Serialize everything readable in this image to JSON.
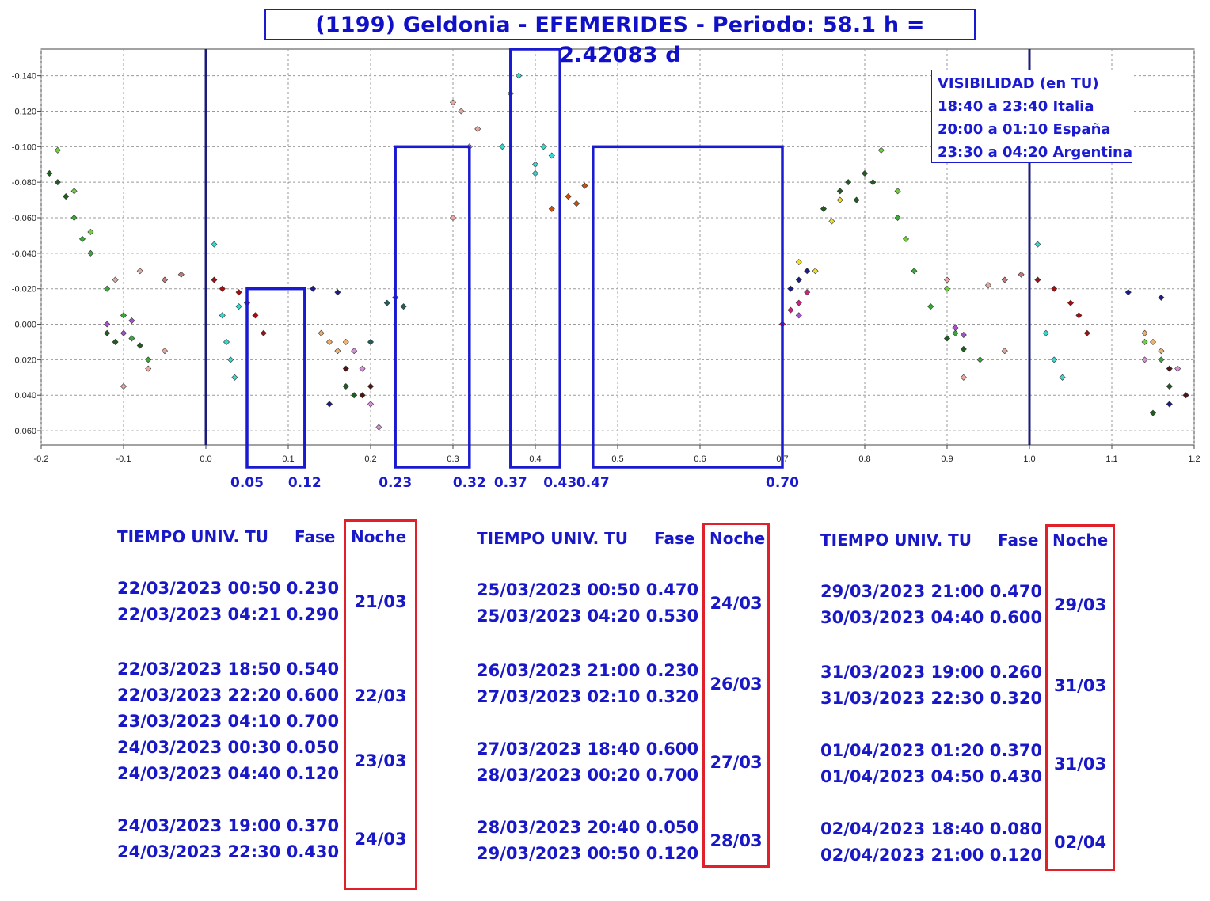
{
  "title": "(1199) Geldonia - EFEMERIDES - Periodo: 58.1 h = 2.42083 d",
  "visibility": {
    "title": "VISIBILIDAD (en TU)",
    "lines": [
      "18:40 a 23:40 Italia",
      "20:00 a 01:10 España",
      "23:30 a 04:20 Argentina"
    ]
  },
  "colors": {
    "accent": "#1a1ad0",
    "night_box": "#e0212a",
    "text": "#1818c8"
  },
  "chart_data": {
    "type": "scatter",
    "title": "(1199) Geldonia - EFEMERIDES - Periodo: 58.1 h = 2.42083 d",
    "xlabel": "",
    "ylabel": "",
    "xlim": [
      -0.2,
      1.2
    ],
    "ylim": [
      -0.155,
      0.068
    ],
    "y_inverted": true,
    "grid": true,
    "x_ticks": [
      "-0.2",
      "-0.1",
      "0.0",
      "0.1",
      "0.2",
      "0.3",
      "0.4",
      "0.5",
      "0.6",
      "0.7",
      "0.8",
      "0.9",
      "1.0",
      "1.1",
      "1.2"
    ],
    "y_ticks": [
      "-0.140",
      "-0.120",
      "-0.100",
      "-0.080",
      "-0.060",
      "-0.040",
      "-0.020",
      "0.000",
      "0.020",
      "0.040",
      "0.060"
    ],
    "vertical_lines": [
      0.0,
      1.0
    ],
    "phase_windows": [
      {
        "from": 0.05,
        "to": 0.12,
        "y_top": -0.02
      },
      {
        "from": 0.23,
        "to": 0.32,
        "y_top": -0.1
      },
      {
        "from": 0.37,
        "to": 0.43,
        "y_top": -0.155
      },
      {
        "from": 0.47,
        "to": 0.7,
        "y_top": -0.1
      }
    ],
    "phase_marks": [
      "0.05",
      "0.12",
      "0.23",
      "0.32",
      "0.37",
      "0.43",
      "0.47",
      "0.70"
    ],
    "series": [
      {
        "color": "#1f5e1f",
        "points": [
          [
            -0.19,
            -0.085
          ],
          [
            -0.18,
            -0.08
          ],
          [
            -0.17,
            -0.072
          ],
          [
            -0.12,
            0.005
          ],
          [
            -0.11,
            0.01
          ],
          [
            -0.08,
            0.012
          ],
          [
            0.17,
            0.035
          ],
          [
            0.18,
            0.04
          ],
          [
            0.75,
            -0.065
          ],
          [
            0.77,
            -0.075
          ],
          [
            0.78,
            -0.08
          ],
          [
            0.8,
            -0.085
          ],
          [
            0.81,
            -0.08
          ],
          [
            0.79,
            -0.07
          ],
          [
            0.9,
            0.008
          ],
          [
            0.92,
            0.014
          ],
          [
            1.17,
            0.035
          ],
          [
            1.15,
            0.05
          ]
        ]
      },
      {
        "color": "#3aa83a",
        "points": [
          [
            -0.16,
            -0.06
          ],
          [
            -0.15,
            -0.048
          ],
          [
            -0.14,
            -0.04
          ],
          [
            -0.12,
            -0.02
          ],
          [
            -0.1,
            -0.005
          ],
          [
            -0.09,
            0.008
          ],
          [
            -0.07,
            0.02
          ],
          [
            0.84,
            -0.06
          ],
          [
            0.86,
            -0.03
          ],
          [
            0.88,
            -0.01
          ],
          [
            0.91,
            0.005
          ],
          [
            0.94,
            0.02
          ],
          [
            1.16,
            0.02
          ]
        ]
      },
      {
        "color": "#6fd03f",
        "points": [
          [
            -0.18,
            -0.098
          ],
          [
            -0.16,
            -0.075
          ],
          [
            -0.14,
            -0.052
          ],
          [
            0.82,
            -0.098
          ],
          [
            0.84,
            -0.075
          ],
          [
            0.85,
            -0.048
          ],
          [
            0.9,
            -0.02
          ],
          [
            1.14,
            0.01
          ]
        ]
      },
      {
        "color": "#e8a8a0",
        "points": [
          [
            -0.11,
            -0.025
          ],
          [
            -0.1,
            0.035
          ],
          [
            -0.08,
            -0.03
          ],
          [
            -0.07,
            0.025
          ],
          [
            -0.05,
            0.015
          ],
          [
            0.3,
            -0.125
          ],
          [
            0.31,
            -0.12
          ],
          [
            0.3,
            -0.06
          ],
          [
            0.32,
            -0.1
          ],
          [
            0.33,
            -0.11
          ],
          [
            0.9,
            -0.025
          ],
          [
            0.92,
            0.03
          ],
          [
            0.95,
            -0.022
          ],
          [
            0.97,
            0.015
          ]
        ]
      },
      {
        "color": "#a01010",
        "points": [
          [
            0.01,
            -0.025
          ],
          [
            0.02,
            -0.02
          ],
          [
            0.04,
            -0.018
          ],
          [
            0.05,
            -0.012
          ],
          [
            0.06,
            -0.005
          ],
          [
            0.07,
            0.005
          ],
          [
            1.01,
            -0.025
          ],
          [
            1.03,
            -0.02
          ],
          [
            1.05,
            -0.012
          ],
          [
            1.06,
            -0.005
          ],
          [
            1.07,
            0.005
          ]
        ]
      },
      {
        "color": "#38d8d0",
        "points": [
          [
            0.01,
            -0.045
          ],
          [
            0.02,
            -0.005
          ],
          [
            0.025,
            0.01
          ],
          [
            0.03,
            0.02
          ],
          [
            0.035,
            0.03
          ],
          [
            0.04,
            -0.01
          ],
          [
            0.38,
            -0.14
          ],
          [
            0.37,
            -0.13
          ],
          [
            0.36,
            -0.1
          ],
          [
            0.4,
            -0.09
          ],
          [
            0.41,
            -0.1
          ],
          [
            0.42,
            -0.095
          ],
          [
            0.4,
            -0.085
          ],
          [
            1.01,
            -0.045
          ],
          [
            1.02,
            0.005
          ],
          [
            1.03,
            0.02
          ],
          [
            1.04,
            0.03
          ]
        ]
      },
      {
        "color": "#a850d0",
        "points": [
          [
            -0.12,
            0.0
          ],
          [
            -0.1,
            0.005
          ],
          [
            -0.09,
            -0.002
          ],
          [
            0.7,
            0.0
          ],
          [
            0.72,
            -0.005
          ],
          [
            0.91,
            0.002
          ],
          [
            0.92,
            0.006
          ]
        ]
      },
      {
        "color": "#f0b070",
        "points": [
          [
            0.14,
            0.005
          ],
          [
            0.15,
            0.01
          ],
          [
            0.16,
            0.015
          ],
          [
            0.17,
            0.01
          ],
          [
            1.14,
            0.005
          ],
          [
            1.15,
            0.01
          ],
          [
            1.16,
            0.015
          ]
        ]
      },
      {
        "color": "#1c1c88",
        "points": [
          [
            0.16,
            -0.018
          ],
          [
            0.13,
            -0.02
          ],
          [
            0.15,
            0.045
          ],
          [
            0.71,
            -0.02
          ],
          [
            0.72,
            -0.025
          ],
          [
            0.73,
            -0.03
          ],
          [
            1.12,
            -0.018
          ],
          [
            1.16,
            -0.015
          ],
          [
            1.17,
            0.045
          ]
        ]
      },
      {
        "color": "#d890d8",
        "points": [
          [
            0.18,
            0.015
          ],
          [
            0.19,
            0.025
          ],
          [
            0.2,
            0.045
          ],
          [
            0.21,
            0.058
          ],
          [
            1.14,
            0.02
          ],
          [
            1.18,
            0.025
          ]
        ]
      },
      {
        "color": "#501414",
        "points": [
          [
            0.17,
            0.025
          ],
          [
            0.19,
            0.04
          ],
          [
            0.2,
            0.035
          ],
          [
            1.17,
            0.025
          ],
          [
            1.19,
            0.04
          ]
        ]
      },
      {
        "color": "#d02080",
        "points": [
          [
            0.7,
            0.0
          ],
          [
            0.71,
            -0.008
          ],
          [
            0.72,
            -0.012
          ],
          [
            0.73,
            -0.018
          ]
        ]
      },
      {
        "color": "#f0e020",
        "points": [
          [
            0.72,
            -0.035
          ],
          [
            0.74,
            -0.03
          ],
          [
            0.76,
            -0.058
          ],
          [
            0.77,
            -0.07
          ]
        ]
      },
      {
        "color": "#1c6060",
        "points": [
          [
            0.22,
            -0.012
          ],
          [
            0.23,
            -0.015
          ],
          [
            0.24,
            -0.01
          ],
          [
            0.2,
            0.01
          ]
        ]
      },
      {
        "color": "#c85010",
        "points": [
          [
            0.42,
            -0.065
          ],
          [
            0.44,
            -0.072
          ],
          [
            0.46,
            -0.078
          ],
          [
            0.45,
            -0.068
          ]
        ]
      },
      {
        "color": "#c87878",
        "points": [
          [
            -0.05,
            -0.025
          ],
          [
            -0.03,
            -0.028
          ],
          [
            0.97,
            -0.025
          ],
          [
            0.99,
            -0.028
          ]
        ]
      }
    ]
  },
  "tables": [
    {
      "headers": {
        "time": "TIEMPO UNIV. TU",
        "phase": "Fase",
        "night": "Noche"
      },
      "groups": [
        {
          "rows": [
            {
              "date": "22/03/2023",
              "time": "00:50",
              "phase": "0.230"
            },
            {
              "date": "22/03/2023",
              "time": "04:21",
              "phase": "0.290"
            }
          ],
          "night": "21/03"
        },
        {
          "rows": [
            {
              "date": "22/03/2023",
              "time": "18:50",
              "phase": "0.540"
            },
            {
              "date": "22/03/2023",
              "time": "22:20",
              "phase": "0.600"
            },
            {
              "date": "23/03/2023",
              "time": "04:10",
              "phase": "0.700"
            }
          ],
          "night": "22/03"
        },
        {
          "rows": [
            {
              "date": "24/03/2023",
              "time": "00:30",
              "phase": "0.050"
            },
            {
              "date": "24/03/2023",
              "time": "04:40",
              "phase": "0.120"
            }
          ],
          "night": "23/03"
        },
        {
          "rows": [
            {
              "date": "24/03/2023",
              "time": "19:00",
              "phase": "0.370"
            },
            {
              "date": "24/03/2023",
              "time": "22:30",
              "phase": "0.430"
            }
          ],
          "night": "24/03"
        }
      ]
    },
    {
      "headers": {
        "time": "TIEMPO UNIV. TU",
        "phase": "Fase",
        "night": "Noche"
      },
      "groups": [
        {
          "rows": [
            {
              "date": "25/03/2023",
              "time": "00:50",
              "phase": "0.470"
            },
            {
              "date": "25/03/2023",
              "time": "04:20",
              "phase": "0.530"
            }
          ],
          "night": "24/03"
        },
        {
          "rows": [
            {
              "date": "26/03/2023",
              "time": "21:00",
              "phase": "0.230"
            },
            {
              "date": "27/03/2023",
              "time": "02:10",
              "phase": "0.320"
            }
          ],
          "night": "26/03"
        },
        {
          "rows": [
            {
              "date": "27/03/2023",
              "time": "18:40",
              "phase": "0.600"
            },
            {
              "date": "28/03/2023",
              "time": "00:20",
              "phase": "0.700"
            }
          ],
          "night": "27/03"
        },
        {
          "rows": [
            {
              "date": "28/03/2023",
              "time": "20:40",
              "phase": "0.050"
            },
            {
              "date": "29/03/2023",
              "time": "00:50",
              "phase": "0.120"
            }
          ],
          "night": "28/03"
        }
      ]
    },
    {
      "headers": {
        "time": "TIEMPO UNIV. TU",
        "phase": "Fase",
        "night": "Noche"
      },
      "groups": [
        {
          "rows": [
            {
              "date": "29/03/2023",
              "time": "21:00",
              "phase": "0.470"
            },
            {
              "date": "30/03/2023",
              "time": "04:40",
              "phase": "0.600"
            }
          ],
          "night": "29/03"
        },
        {
          "rows": [
            {
              "date": "31/03/2023",
              "time": "19:00",
              "phase": "0.260"
            },
            {
              "date": "31/03/2023",
              "time": "22:30",
              "phase": "0.320"
            }
          ],
          "night": "31/03"
        },
        {
          "rows": [
            {
              "date": "01/04/2023",
              "time": "01:20",
              "phase": "0.370"
            },
            {
              "date": "01/04/2023",
              "time": "04:50",
              "phase": "0.430"
            }
          ],
          "night": "31/03"
        },
        {
          "rows": [
            {
              "date": "02/04/2023",
              "time": "18:40",
              "phase": "0.080"
            },
            {
              "date": "02/04/2023",
              "time": "21:00",
              "phase": "0.120"
            }
          ],
          "night": "02/04"
        }
      ]
    }
  ]
}
